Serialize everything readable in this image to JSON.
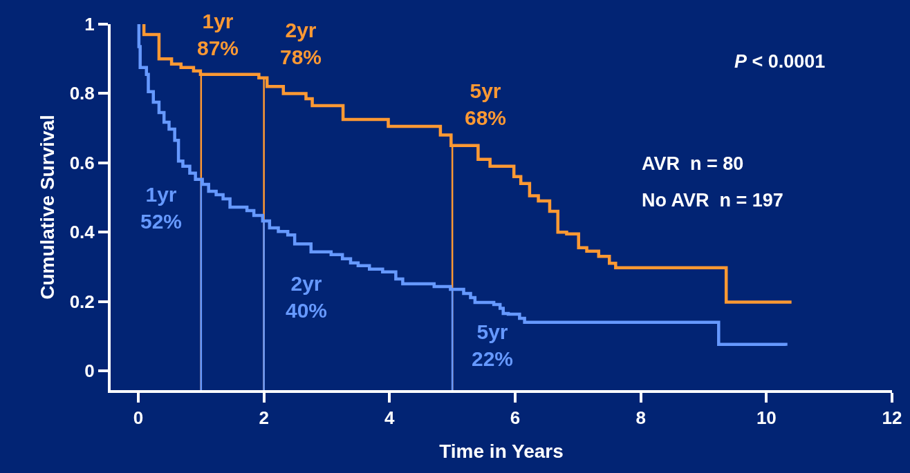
{
  "chart_data": {
    "type": "step",
    "xlabel": "Time in Years",
    "ylabel": "Cumulative Survival",
    "xlim": [
      -0.44,
      12
    ],
    "xticks": [
      0,
      2,
      4,
      6,
      8,
      10,
      12
    ],
    "ylim": [
      -0.056,
      1
    ],
    "yticks": [
      0,
      0.2,
      0.4,
      0.6,
      0.8,
      1
    ],
    "grid": false,
    "marker": "none",
    "line_style": "solid",
    "series": [
      {
        "color": "#ff9933",
        "x": [
          0.07,
          0.09,
          0.33,
          0.53,
          0.68,
          0.88,
          0.99,
          1.92,
          2.05,
          2.31,
          2.67,
          2.77,
          3.26,
          3.98,
          4.81,
          4.98,
          5.41,
          5.6,
          5.98,
          6.09,
          6.23,
          6.37,
          6.55,
          6.68,
          6.82,
          7.01,
          7.14,
          7.33,
          7.5,
          7.6,
          9.36,
          10.4
        ],
        "values": [
          1,
          0.97,
          0.9,
          0.885,
          0.875,
          0.865,
          0.855,
          0.845,
          0.82,
          0.8,
          0.785,
          0.765,
          0.725,
          0.705,
          0.68,
          0.65,
          0.61,
          0.59,
          0.56,
          0.54,
          0.505,
          0.49,
          0.46,
          0.4,
          0.395,
          0.355,
          0.345,
          0.33,
          0.31,
          0.297,
          0.198,
          0.198
        ]
      },
      {
        "color": "#6699ff",
        "x": [
          0,
          0.01,
          0.03,
          0.13,
          0.16,
          0.24,
          0.33,
          0.41,
          0.49,
          0.58,
          0.64,
          0.71,
          0.82,
          0.91,
          1.02,
          1.12,
          1.24,
          1.35,
          1.46,
          1.73,
          1.84,
          1.98,
          2.09,
          2.23,
          2.38,
          2.49,
          2.75,
          3.07,
          3.25,
          3.38,
          3.5,
          3.68,
          3.89,
          4.1,
          4.21,
          4.71,
          4.97,
          5.18,
          5.29,
          5.36,
          5.66,
          5.76,
          5.81,
          5.89,
          6.07,
          6.15,
          9.24,
          10.31
        ],
        "values": [
          1,
          0.935,
          0.875,
          0.855,
          0.805,
          0.775,
          0.745,
          0.717,
          0.697,
          0.665,
          0.605,
          0.59,
          0.57,
          0.552,
          0.538,
          0.518,
          0.508,
          0.496,
          0.472,
          0.462,
          0.448,
          0.432,
          0.412,
          0.402,
          0.392,
          0.366,
          0.343,
          0.335,
          0.323,
          0.311,
          0.303,
          0.293,
          0.285,
          0.265,
          0.251,
          0.243,
          0.235,
          0.223,
          0.211,
          0.197,
          0.191,
          0.18,
          0.165,
          0.163,
          0.151,
          0.14,
          0.076,
          0.072
        ]
      }
    ],
    "ref_lines": [
      {
        "axis": "x",
        "value": 1,
        "color": "#ff9933"
      },
      {
        "axis": "x",
        "value": 2,
        "color": "#ff9933"
      },
      {
        "axis": "x",
        "value": 5,
        "color": "#ff9933"
      },
      {
        "axis": "x",
        "value": 1,
        "color": "#6699ff"
      },
      {
        "axis": "x",
        "value": 2,
        "color": "#6699ff"
      },
      {
        "axis": "x",
        "value": 5,
        "color": "#6699ff"
      }
    ],
    "annotations": [
      {
        "text": "1yr\n87%",
        "x": 1,
        "y": 0.855
      },
      {
        "text": "2yr\n78%",
        "x": 2,
        "y": 0.845
      },
      {
        "text": "5yr\n68%",
        "x": 5,
        "y": 0.65
      },
      {
        "text": "1yr\n52%",
        "x": 1,
        "y": 0.538
      },
      {
        "text": "2yr\n40%",
        "x": 2,
        "y": 0.432
      },
      {
        "text": "5yr\n22%",
        "x": 5,
        "y": 0.235
      },
      "P < 0.0001",
      "AVR  n = 80",
      "No AVR  n = 197"
    ]
  }
}
